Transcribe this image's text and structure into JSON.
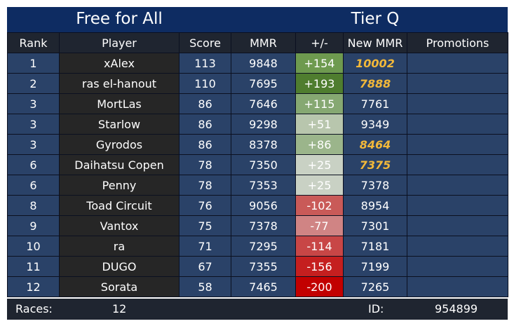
{
  "header": {
    "mode": "Free for All",
    "tier": "Tier Q"
  },
  "columns": [
    "Rank",
    "Player",
    "Score",
    "MMR",
    "+/-",
    "New MMR",
    "Promotions"
  ],
  "rows": [
    {
      "rank": "1",
      "player": "xAlex",
      "score": "113",
      "mmr": "9848",
      "delta": "+154",
      "new_mmr": "10002",
      "promoted": true,
      "delta_color": "#6e9a4f",
      "promotion": ""
    },
    {
      "rank": "2",
      "player": "ras el-hanout",
      "score": "110",
      "mmr": "7695",
      "delta": "+193",
      "new_mmr": "7888",
      "promoted": true,
      "delta_color": "#4f7d2f",
      "promotion": ""
    },
    {
      "rank": "3",
      "player": "MortLas",
      "score": "86",
      "mmr": "7646",
      "delta": "+115",
      "new_mmr": "7761",
      "promoted": false,
      "delta_color": "#86a872",
      "promotion": ""
    },
    {
      "rank": "3",
      "player": "Starlow",
      "score": "86",
      "mmr": "9298",
      "delta": "+51",
      "new_mmr": "9349",
      "promoted": false,
      "delta_color": "#b8c6ad",
      "promotion": ""
    },
    {
      "rank": "3",
      "player": "Gyrodos",
      "score": "86",
      "mmr": "8378",
      "delta": "+86",
      "new_mmr": "8464",
      "promoted": true,
      "delta_color": "#9bb58b",
      "promotion": ""
    },
    {
      "rank": "6",
      "player": "Daihatsu Copen",
      "score": "78",
      "mmr": "7350",
      "delta": "+25",
      "new_mmr": "7375",
      "promoted": true,
      "delta_color": "#c9d1c4",
      "promotion": ""
    },
    {
      "rank": "6",
      "player": "Penny",
      "score": "78",
      "mmr": "7353",
      "delta": "+25",
      "new_mmr": "7378",
      "promoted": false,
      "delta_color": "#c9d1c4",
      "promotion": ""
    },
    {
      "rank": "8",
      "player": "Toad Circuit",
      "score": "76",
      "mmr": "9056",
      "delta": "-102",
      "new_mmr": "8954",
      "promoted": false,
      "delta_color": "#c95a58",
      "promotion": ""
    },
    {
      "rank": "9",
      "player": "Vantox",
      "score": "75",
      "mmr": "7378",
      "delta": "-77",
      "new_mmr": "7301",
      "promoted": false,
      "delta_color": "#d08484",
      "promotion": ""
    },
    {
      "rank": "10",
      "player": "ra",
      "score": "71",
      "mmr": "7295",
      "delta": "-114",
      "new_mmr": "7181",
      "promoted": false,
      "delta_color": "#c84646",
      "promotion": ""
    },
    {
      "rank": "11",
      "player": "DUGO",
      "score": "67",
      "mmr": "7355",
      "delta": "-156",
      "new_mmr": "7199",
      "promoted": false,
      "delta_color": "#c51f1f",
      "promotion": ""
    },
    {
      "rank": "12",
      "player": "Sorata",
      "score": "58",
      "mmr": "7465",
      "delta": "-200",
      "new_mmr": "7265",
      "promoted": false,
      "delta_color": "#c20000",
      "promotion": ""
    }
  ],
  "footer": {
    "races_label": "Races:",
    "races_value": "12",
    "id_label": "ID:",
    "id_value": "954899"
  },
  "colors": {
    "title_bg": "#0e2c62",
    "header_bg": "#1f2530",
    "cell_blue": "#2a4268",
    "player_bg": "#262626",
    "promo_text": "#f2b83a"
  }
}
